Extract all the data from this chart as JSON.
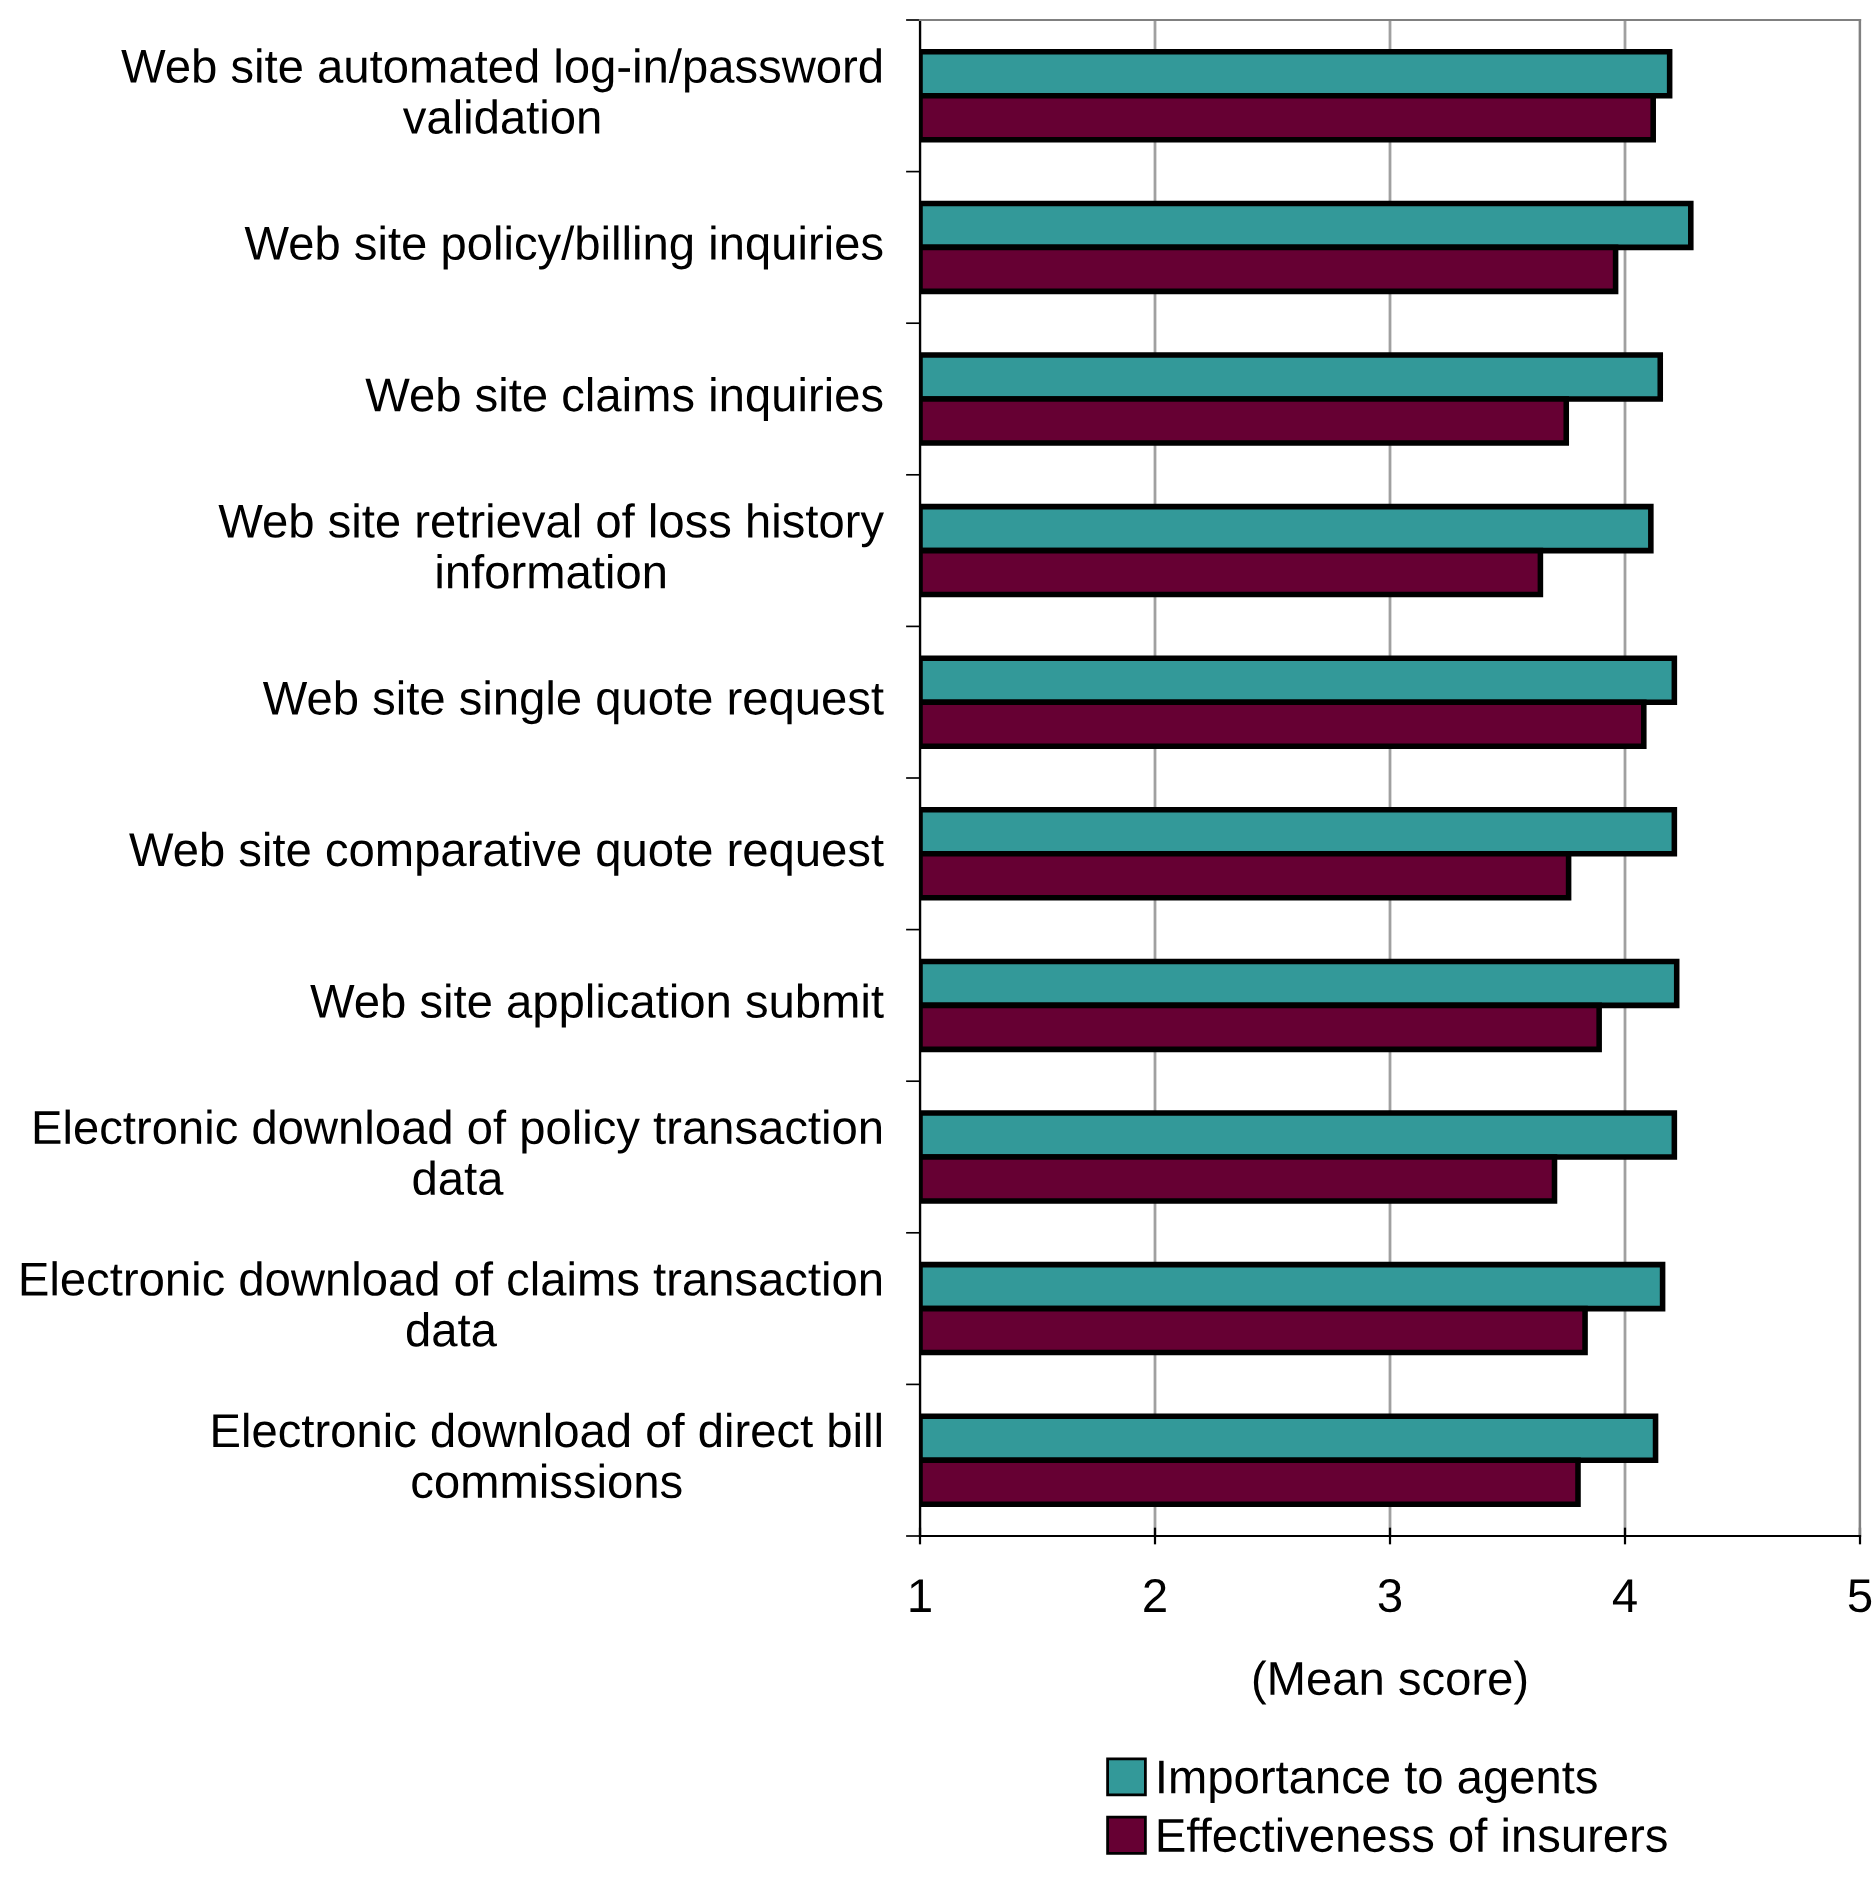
{
  "chart_data": {
    "type": "bar",
    "orientation": "horizontal",
    "xlabel": "(Mean score)",
    "categories": [
      "Web site automated log-in/password validation",
      "Web site policy/billing inquiries",
      "Web site claims inquiries",
      "Web site retrieval of loss history information",
      "Web site single quote request",
      "Web site comparative quote request",
      "Web site application submit",
      "Electronic download of policy transaction data",
      "Electronic download of claims transaction data",
      "Electronic download of direct bill commissions"
    ],
    "series": [
      {
        "name": "Importance to agents",
        "color": "#339999",
        "values": [
          4.19,
          4.28,
          4.15,
          4.11,
          4.21,
          4.21,
          4.22,
          4.21,
          4.16,
          4.13
        ]
      },
      {
        "name": "Effectiveness of insurers",
        "color": "#660033",
        "values": [
          4.12,
          3.96,
          3.75,
          3.64,
          4.08,
          3.76,
          3.89,
          3.7,
          3.83,
          3.8
        ]
      }
    ],
    "xlim": [
      1,
      5
    ],
    "xticks": [
      1,
      2,
      3,
      4,
      5
    ],
    "grid": "x",
    "legend": "bottom"
  }
}
